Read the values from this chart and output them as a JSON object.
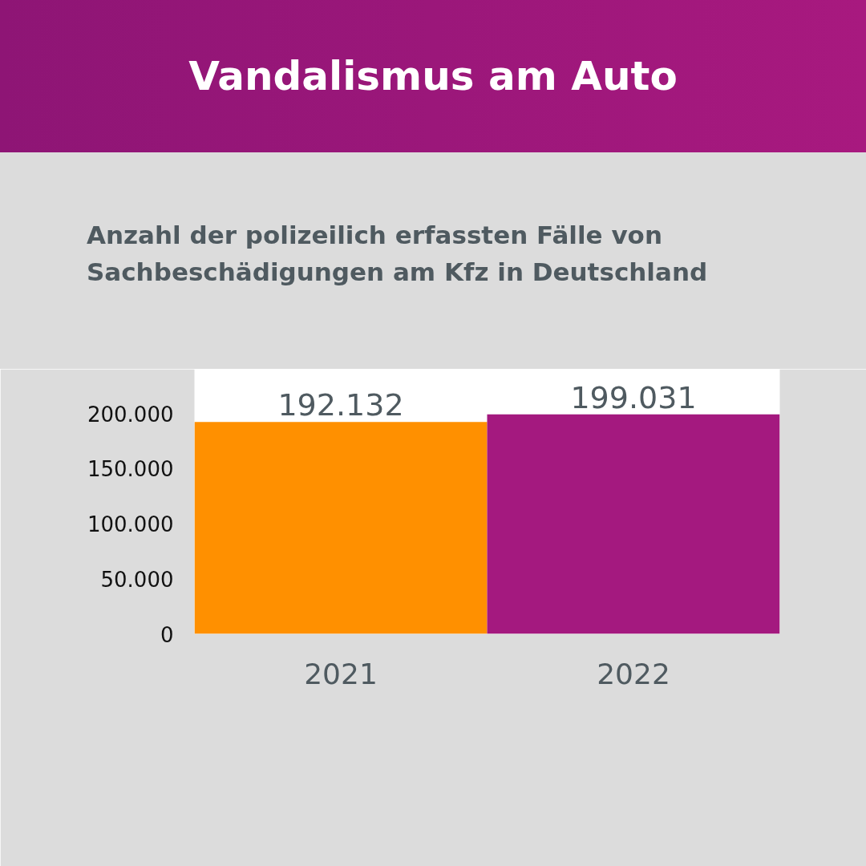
{
  "chart_data": {
    "type": "bar",
    "title": "Vandalismus am Auto",
    "subtitle": "Anzahl der polizeilich erfassten Fälle von Sachbeschädigungen am Kfz in Deutschland",
    "categories": [
      "2021",
      "2022"
    ],
    "values": [
      192132,
      199031
    ],
    "colors": [
      "#ff9000",
      "#a4197f"
    ],
    "value_labels": [
      "192.132",
      "199.031"
    ],
    "ylim": [
      0,
      240000
    ],
    "yticks": [
      {
        "value": 0,
        "label": "0"
      },
      {
        "value": 50000,
        "label": "50.000"
      },
      {
        "value": 100000,
        "label": "100.000"
      },
      {
        "value": 150000,
        "label": "150.000"
      },
      {
        "value": 200000,
        "label": "200.000"
      }
    ],
    "grid": false
  }
}
